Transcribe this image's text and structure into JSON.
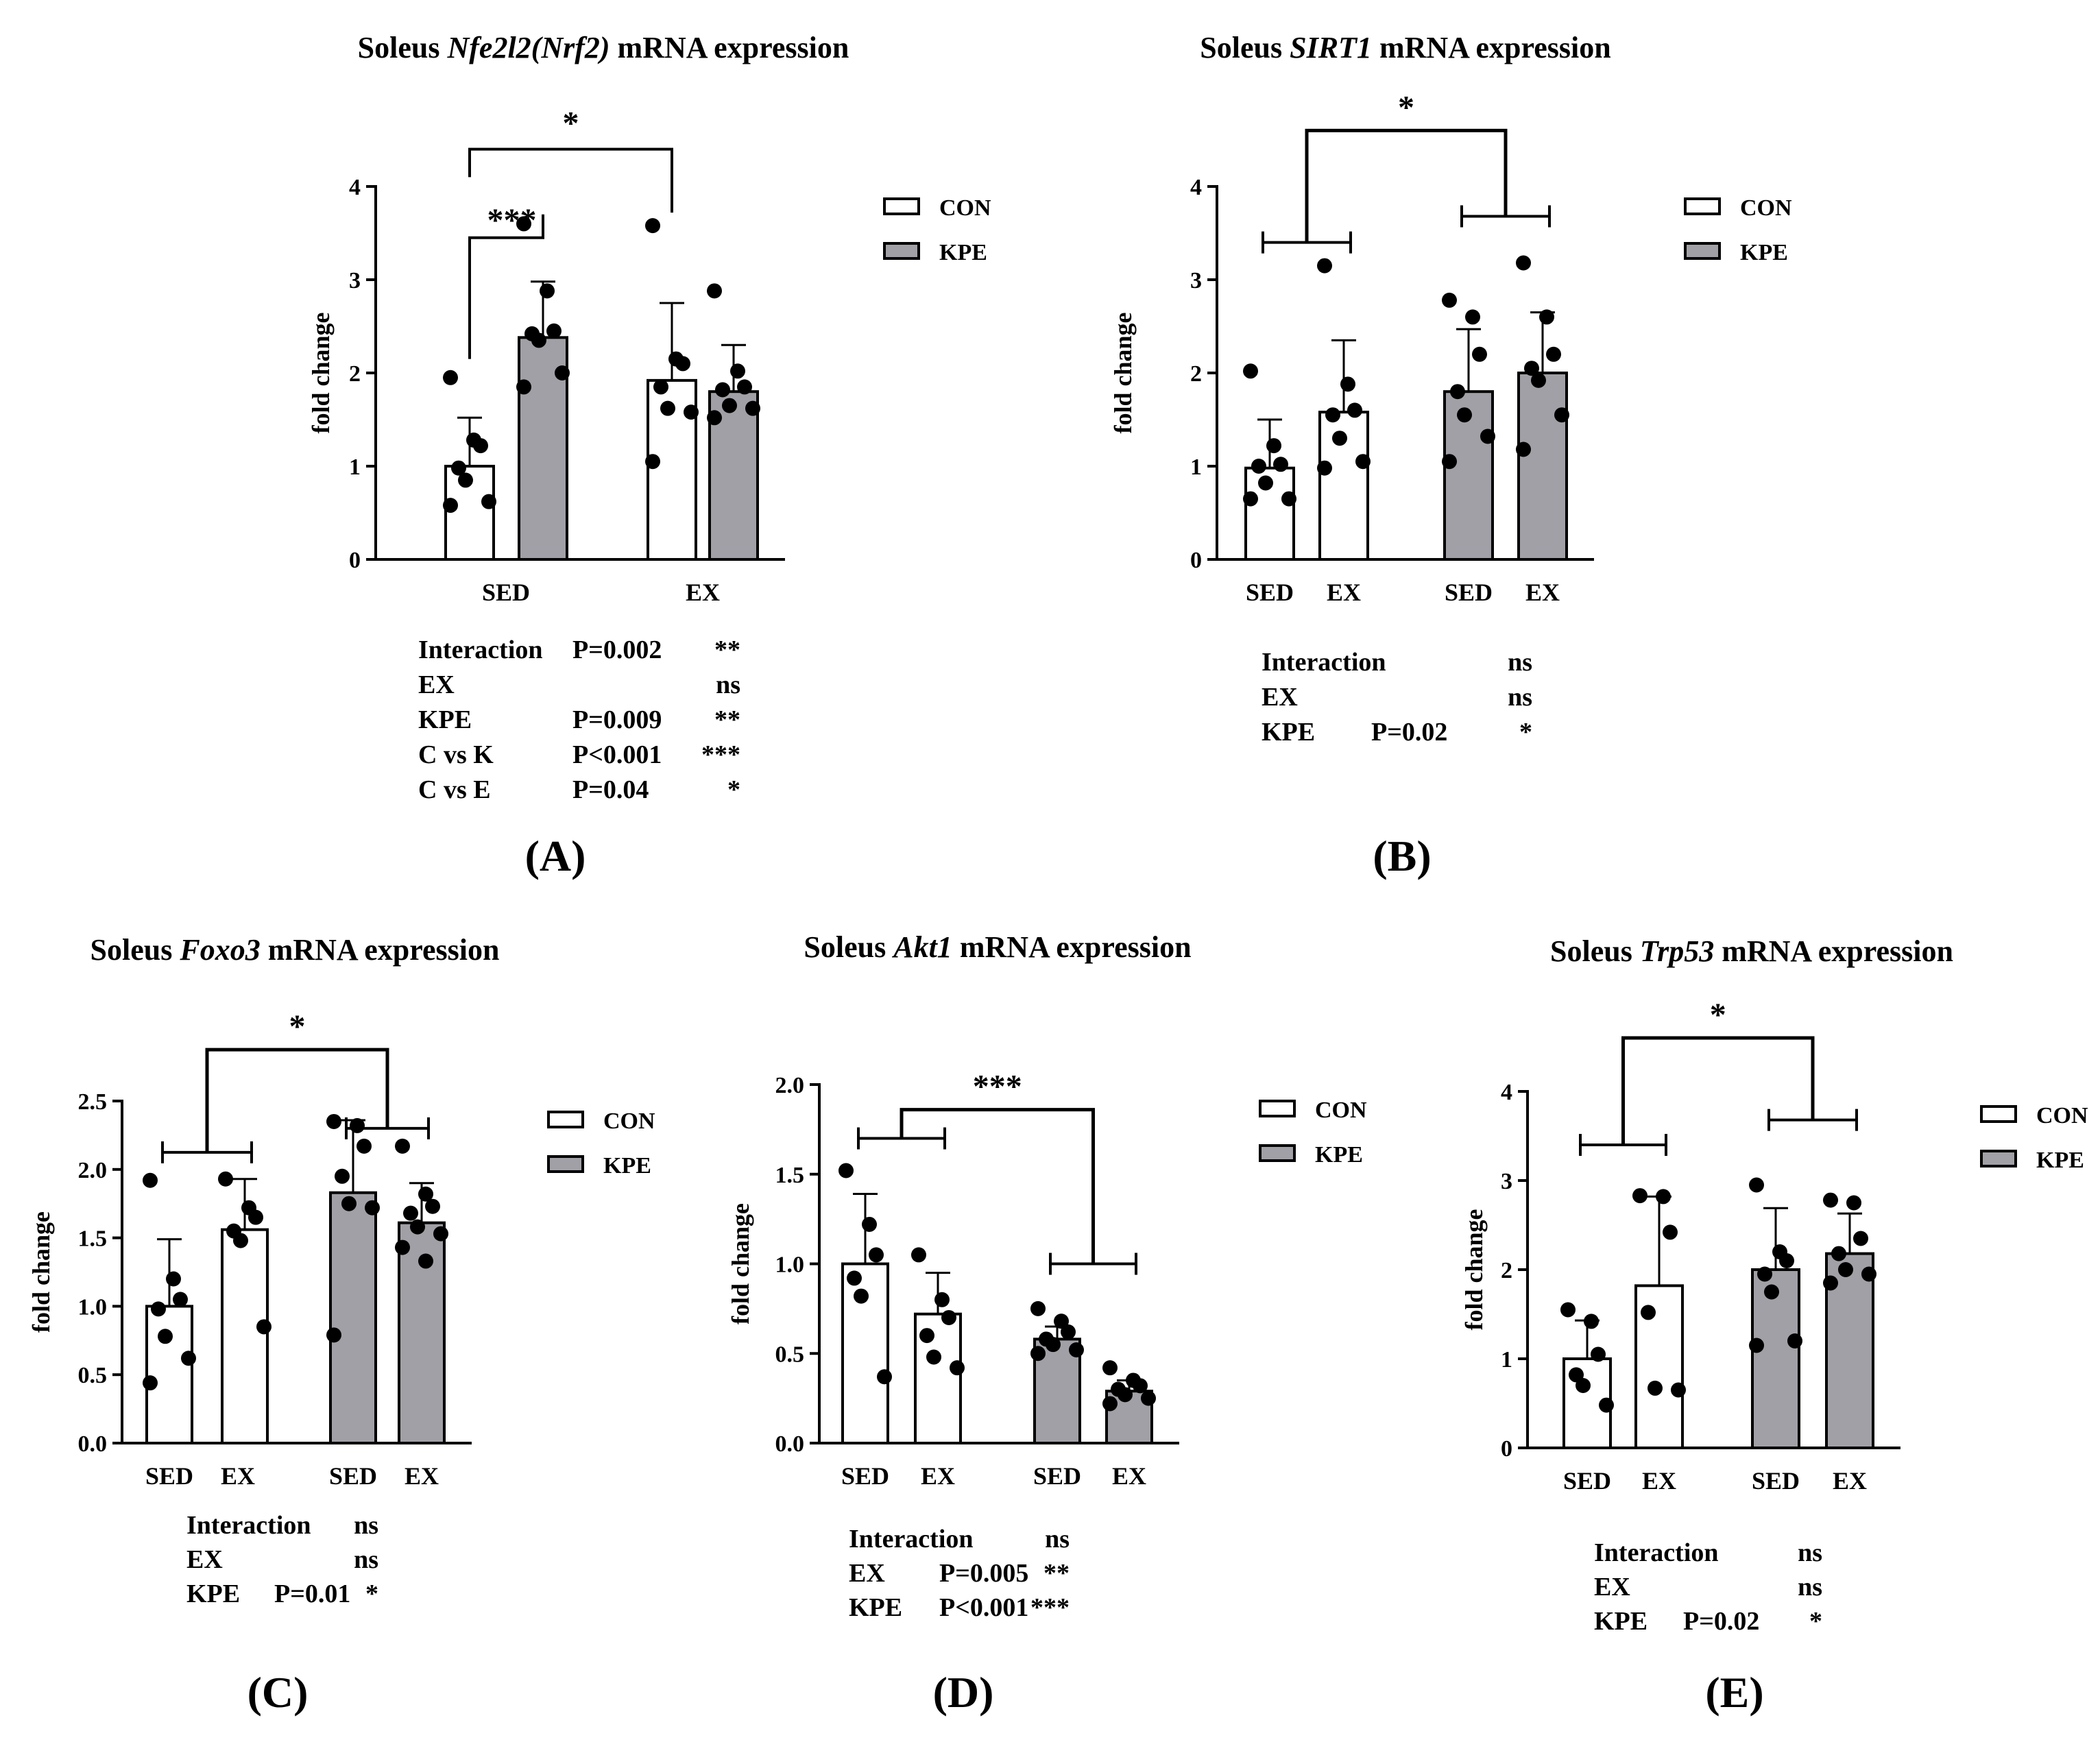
{
  "colors": {
    "con_fill": "#ffffff",
    "kpe_fill": "#a0a0a6",
    "ink": "#000000"
  },
  "chart_data": [
    {
      "id": "A",
      "panel_label": "(A)",
      "type": "bar",
      "title_prefix": "Soleus ",
      "title_gene": "Nfe2l2(Nrf2)",
      "title_suffix": " mRNA expression",
      "ylabel": "fold change",
      "ylim": [
        0,
        4
      ],
      "yticks": [
        "0",
        "1",
        "2",
        "3",
        "4"
      ],
      "groups": [
        "SED",
        "EX"
      ],
      "legend": [
        "CON",
        "KPE"
      ],
      "bars": [
        {
          "group": "SED",
          "series": "CON",
          "mean": 1.0,
          "sd": 0.52,
          "points": [
            1.95,
            1.28,
            1.22,
            0.98,
            0.85,
            0.62,
            0.58
          ]
        },
        {
          "group": "SED",
          "series": "KPE",
          "mean": 2.38,
          "sd": 0.6,
          "points": [
            3.6,
            2.88,
            2.45,
            2.42,
            2.35,
            2.0,
            1.85
          ]
        },
        {
          "group": "EX",
          "series": "CON",
          "mean": 1.92,
          "sd": 0.83,
          "points": [
            3.58,
            2.15,
            2.1,
            1.85,
            1.62,
            1.58,
            1.05
          ]
        },
        {
          "group": "EX",
          "series": "KPE",
          "mean": 1.8,
          "sd": 0.5,
          "points": [
            2.88,
            2.02,
            1.85,
            1.82,
            1.65,
            1.62,
            1.52
          ]
        }
      ],
      "sig_brackets": [
        {
          "label": "***"
        },
        {
          "label": "*"
        }
      ],
      "stats": [
        {
          "term": "Interaction",
          "p": "P=0.002",
          "sig": "**"
        },
        {
          "term": "EX",
          "p": "",
          "sig": "ns"
        },
        {
          "term": "KPE",
          "p": "P=0.009",
          "sig": "**"
        },
        {
          "term": "C vs K",
          "p": "P<0.001",
          "sig": "***"
        },
        {
          "term": "C vs E",
          "p": "P=0.04",
          "sig": "*"
        }
      ]
    },
    {
      "id": "B",
      "panel_label": "(B)",
      "type": "bar",
      "title_prefix": "Soleus ",
      "title_gene": "SIRT1",
      "title_suffix": " mRNA expression",
      "ylabel": "fold change",
      "ylim": [
        0,
        4
      ],
      "yticks": [
        "0",
        "1",
        "2",
        "3",
        "4"
      ],
      "groups": [
        "SED",
        "EX",
        "SED",
        "EX"
      ],
      "legend": [
        "CON",
        "KPE"
      ],
      "bars": [
        {
          "group": "SED",
          "series": "CON",
          "mean": 0.98,
          "sd": 0.52,
          "points": [
            2.02,
            1.22,
            1.02,
            1.0,
            0.82,
            0.65,
            0.65
          ]
        },
        {
          "group": "EX",
          "series": "CON",
          "mean": 1.58,
          "sd": 0.77,
          "points": [
            3.15,
            1.88,
            1.6,
            1.55,
            1.3,
            1.05,
            0.98
          ]
        },
        {
          "group": "SED",
          "series": "KPE",
          "mean": 1.8,
          "sd": 0.67,
          "points": [
            2.78,
            2.6,
            2.2,
            1.8,
            1.55,
            1.32,
            1.05
          ]
        },
        {
          "group": "EX",
          "series": "KPE",
          "mean": 2.0,
          "sd": 0.65,
          "points": [
            3.18,
            2.6,
            2.2,
            2.05,
            1.92,
            1.55,
            1.18
          ]
        }
      ],
      "sig_brackets": [
        {
          "label": "*"
        }
      ],
      "stats": [
        {
          "term": "Interaction",
          "p": "",
          "sig": "ns"
        },
        {
          "term": "EX",
          "p": "",
          "sig": "ns"
        },
        {
          "term": "KPE",
          "p": "P=0.02",
          "sig": "*"
        }
      ]
    },
    {
      "id": "C",
      "panel_label": "(C)",
      "type": "bar",
      "title_prefix": "Soleus ",
      "title_gene": "Foxo3",
      "title_suffix": "  mRNA expression",
      "ylabel": "fold change",
      "ylim": [
        0,
        2.5
      ],
      "yticks": [
        "0.0",
        "0.5",
        "1.0",
        "1.5",
        "2.0",
        "2.5"
      ],
      "groups": [
        "SED",
        "EX",
        "SED",
        "EX"
      ],
      "legend": [
        "CON",
        "KPE"
      ],
      "bars": [
        {
          "group": "SED",
          "series": "CON",
          "mean": 1.0,
          "sd": 0.49,
          "points": [
            1.92,
            1.2,
            1.05,
            0.98,
            0.78,
            0.62,
            0.44
          ]
        },
        {
          "group": "EX",
          "series": "CON",
          "mean": 1.56,
          "sd": 0.37,
          "points": [
            1.93,
            1.72,
            1.65,
            1.55,
            1.48,
            0.85
          ]
        },
        {
          "group": "SED",
          "series": "KPE",
          "mean": 1.83,
          "sd": 0.53,
          "points": [
            2.35,
            2.32,
            2.17,
            1.95,
            1.75,
            1.72,
            0.79
          ]
        },
        {
          "group": "EX",
          "series": "KPE",
          "mean": 1.61,
          "sd": 0.29,
          "points": [
            2.17,
            1.82,
            1.73,
            1.68,
            1.58,
            1.53,
            1.43,
            1.33
          ]
        }
      ],
      "sig_brackets": [
        {
          "label": "*"
        }
      ],
      "stats": [
        {
          "term": "Interaction",
          "p": "",
          "sig": "ns"
        },
        {
          "term": "EX",
          "p": "",
          "sig": "ns"
        },
        {
          "term": "KPE",
          "p": "P=0.01",
          "sig": "*"
        }
      ]
    },
    {
      "id": "D",
      "panel_label": "(D)",
      "type": "bar",
      "title_prefix": "Soleus ",
      "title_gene": "Akt1",
      "title_suffix": " mRNA expression",
      "ylabel": "fold change",
      "ylim": [
        0,
        2.0
      ],
      "yticks": [
        "0.0",
        "0.5",
        "1.0",
        "1.5",
        "2.0"
      ],
      "groups": [
        "SED",
        "EX",
        "SED",
        "EX"
      ],
      "legend": [
        "CON",
        "KPE"
      ],
      "bars": [
        {
          "group": "SED",
          "series": "CON",
          "mean": 1.0,
          "sd": 0.39,
          "points": [
            1.52,
            1.22,
            1.05,
            0.92,
            0.82,
            0.37
          ]
        },
        {
          "group": "EX",
          "series": "CON",
          "mean": 0.72,
          "sd": 0.23,
          "points": [
            1.05,
            0.8,
            0.7,
            0.6,
            0.48,
            0.42
          ]
        },
        {
          "group": "SED",
          "series": "KPE",
          "mean": 0.58,
          "sd": 0.07,
          "points": [
            0.75,
            0.68,
            0.62,
            0.58,
            0.55,
            0.52,
            0.5
          ]
        },
        {
          "group": "EX",
          "series": "KPE",
          "mean": 0.29,
          "sd": 0.06,
          "points": [
            0.42,
            0.35,
            0.32,
            0.3,
            0.27,
            0.25,
            0.22
          ]
        }
      ],
      "sig_brackets": [
        {
          "label": "***"
        }
      ],
      "stats": [
        {
          "term": "Interaction",
          "p": "",
          "sig": "ns"
        },
        {
          "term": "EX",
          "p": "P=0.005",
          "sig": "**"
        },
        {
          "term": "KPE",
          "p": "P<0.001",
          "sig": "***"
        }
      ]
    },
    {
      "id": "E",
      "panel_label": "(E)",
      "type": "bar",
      "title_prefix": "Soleus ",
      "title_gene": "Trp53",
      "title_suffix": " mRNA expression",
      "ylabel": "fold change",
      "ylim": [
        0,
        4
      ],
      "yticks": [
        "0",
        "1",
        "2",
        "3",
        "4"
      ],
      "groups": [
        "SED",
        "EX",
        "SED",
        "EX"
      ],
      "legend": [
        "CON",
        "KPE"
      ],
      "bars": [
        {
          "group": "SED",
          "series": "CON",
          "mean": 1.0,
          "sd": 0.43,
          "points": [
            1.55,
            1.42,
            1.05,
            0.82,
            0.7,
            0.48
          ]
        },
        {
          "group": "EX",
          "series": "CON",
          "mean": 1.82,
          "sd": 1.0,
          "points": [
            2.83,
            2.82,
            2.42,
            1.52,
            0.67,
            0.65
          ]
        },
        {
          "group": "SED",
          "series": "KPE",
          "mean": 2.0,
          "sd": 0.69,
          "points": [
            2.95,
            2.2,
            2.1,
            1.95,
            1.75,
            1.2,
            1.15
          ]
        },
        {
          "group": "EX",
          "series": "KPE",
          "mean": 2.18,
          "sd": 0.45,
          "points": [
            2.78,
            2.75,
            2.35,
            2.18,
            2.0,
            1.95,
            1.85
          ]
        }
      ],
      "sig_brackets": [
        {
          "label": "*"
        }
      ],
      "stats": [
        {
          "term": "Interaction",
          "p": "",
          "sig": "ns"
        },
        {
          "term": "EX",
          "p": "",
          "sig": "ns"
        },
        {
          "term": "KPE",
          "p": "P=0.02",
          "sig": "*"
        }
      ]
    }
  ]
}
